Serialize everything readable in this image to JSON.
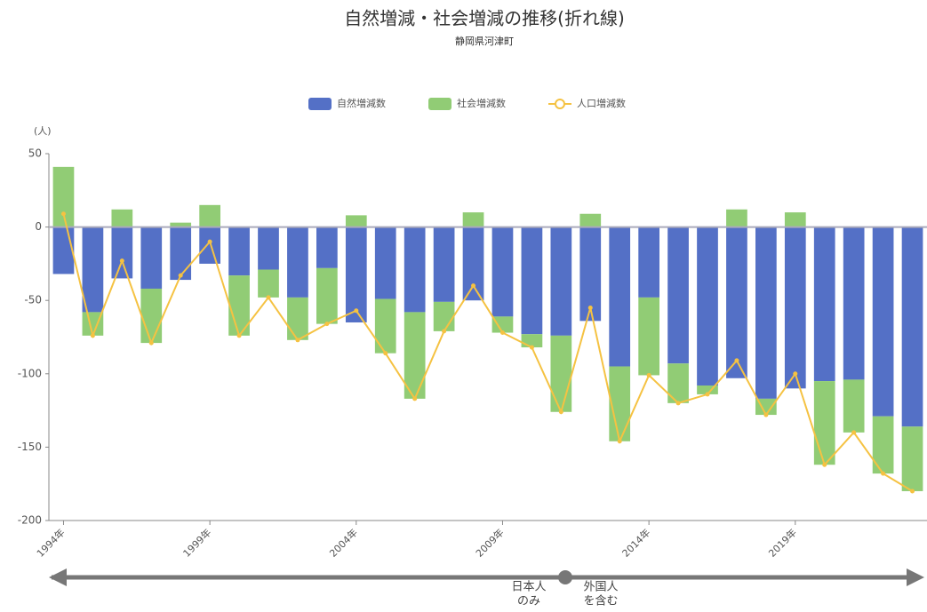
{
  "chart_data": {
    "type": "bar-line",
    "title": "自然増減・社会増減の推移(折れ線)",
    "subtitle": "静岡県河津町",
    "y_label": "(人)",
    "categories": [
      "1994年",
      null,
      null,
      null,
      null,
      "1999年",
      null,
      null,
      null,
      null,
      "2004年",
      null,
      null,
      null,
      null,
      "2009年",
      null,
      null,
      null,
      null,
      "2014年",
      null,
      null,
      null,
      null,
      "2019年",
      null,
      null,
      null,
      null
    ],
    "series": [
      {
        "name": "自然増減数",
        "kind": "bar",
        "color": "#5470c6",
        "values": [
          -32,
          -58,
          -35,
          -42,
          -36,
          -25,
          -33,
          -29,
          -48,
          -28,
          -65,
          -49,
          -58,
          -51,
          -50,
          -61,
          -73,
          -74,
          -64,
          -95,
          -48,
          -93,
          -108,
          -103,
          -117,
          -110,
          -105,
          -104,
          -129,
          -136
        ]
      },
      {
        "name": "社会増減数",
        "kind": "bar",
        "color": "#91cc75",
        "values": [
          41,
          -16,
          12,
          -37,
          3,
          15,
          -41,
          -19,
          -29,
          -38,
          8,
          -37,
          -59,
          -20,
          10,
          -11,
          -9,
          -52,
          9,
          -51,
          -53,
          -27,
          -6,
          12,
          -11,
          10,
          -57,
          -36,
          -39,
          -44
        ]
      },
      {
        "name": "人口増減数",
        "kind": "line",
        "color": "#f5c242",
        "values": [
          9,
          -74,
          -23,
          -79,
          -33,
          -10,
          -74,
          -48,
          -77,
          -66,
          -57,
          -86,
          -117,
          -71,
          -40,
          -72,
          -82,
          -126,
          -55,
          -146,
          -101,
          -120,
          -114,
          -91,
          -128,
          -100,
          -162,
          -140,
          -168,
          -180
        ]
      }
    ],
    "ylim": [
      -200,
      50
    ],
    "yticks": [
      -200,
      -150,
      -100,
      -50,
      0,
      50
    ],
    "grid": false,
    "annotations": [
      [
        "日本人",
        "のみ"
      ],
      [
        "外国人",
        "を含む"
      ]
    ]
  }
}
